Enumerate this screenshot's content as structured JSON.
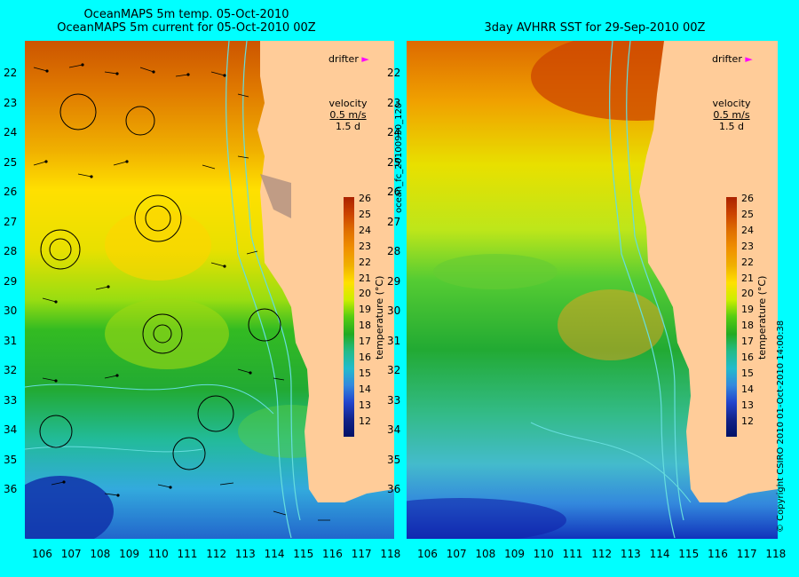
{
  "left": {
    "title_line1": "OceanMAPS 5m temp. 05-Oct-2010",
    "title_line2": "OceanMAPS 5m current for 05-Oct-2010 00Z",
    "drifter_label": "drifter",
    "velocity_label": "velocity",
    "velocity_scale": "0.5 m/s",
    "velocity_time": "1.5 d",
    "colorbar_title": "temperature (°C)"
  },
  "right": {
    "title": "3day AVHRR SST for 29-Sep-2010 00Z",
    "drifter_label": "drifter",
    "velocity_label": "velocity",
    "velocity_scale": "0.5 m/s",
    "velocity_time": "1.5 d",
    "colorbar_title": "temperature (°C)"
  },
  "middle_vertical_label": "ocean_fc_20100930_120",
  "copyright": "© Copyright CSIRO 2010  01-Oct-2010 14:00:38",
  "lat_ticks": [
    "22",
    "23",
    "24",
    "25",
    "26",
    "27",
    "28",
    "29",
    "30",
    "31",
    "32",
    "33",
    "34",
    "35",
    "36"
  ],
  "lon_ticks": [
    "106",
    "107",
    "108",
    "109",
    "110",
    "111",
    "112",
    "113",
    "114",
    "115",
    "116",
    "117",
    "118"
  ],
  "colorbar_ticks": [
    "26",
    "25",
    "24",
    "23",
    "22",
    "21",
    "20",
    "19",
    "18",
    "17",
    "16",
    "15",
    "14",
    "13",
    "12"
  ],
  "colors": {
    "background": "#00ffff",
    "land": "#ffcc99",
    "drifter": "#ff00ff",
    "contour": "#66dddd"
  }
}
